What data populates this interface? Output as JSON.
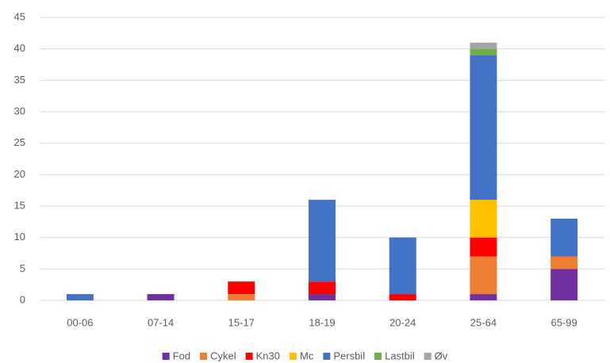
{
  "chart_data": {
    "type": "stacked_bar",
    "categories": [
      "00-06",
      "07-14",
      "15-17",
      "18-19",
      "20-24",
      "25-64",
      "65-99"
    ],
    "series": [
      {
        "name": "Fod",
        "color": "#7030a0",
        "values": [
          0,
          1,
          0,
          1,
          0,
          1,
          5
        ]
      },
      {
        "name": "Cykel",
        "color": "#ed7d31",
        "values": [
          0,
          0,
          1,
          0,
          0,
          6,
          2
        ]
      },
      {
        "name": "Kn30",
        "color": "#ff0000",
        "values": [
          0,
          0,
          2,
          2,
          1,
          3,
          0
        ]
      },
      {
        "name": "Mc",
        "color": "#ffc000",
        "values": [
          0,
          0,
          0,
          0,
          0,
          6,
          0
        ]
      },
      {
        "name": "Persbil",
        "color": "#4472c4",
        "values": [
          1,
          0,
          0,
          13,
          9,
          23,
          6
        ]
      },
      {
        "name": "Lastbil",
        "color": "#70ad47",
        "values": [
          0,
          0,
          0,
          0,
          0,
          1,
          0
        ]
      },
      {
        "name": "Øv",
        "color": "#a5a5a5",
        "values": [
          0,
          0,
          0,
          0,
          0,
          1,
          0
        ]
      }
    ],
    "ylim": [
      0,
      45
    ],
    "yticks": [
      0,
      5,
      10,
      15,
      20,
      25,
      30,
      35,
      40,
      45
    ],
    "grid": true,
    "legend": "bottom"
  }
}
